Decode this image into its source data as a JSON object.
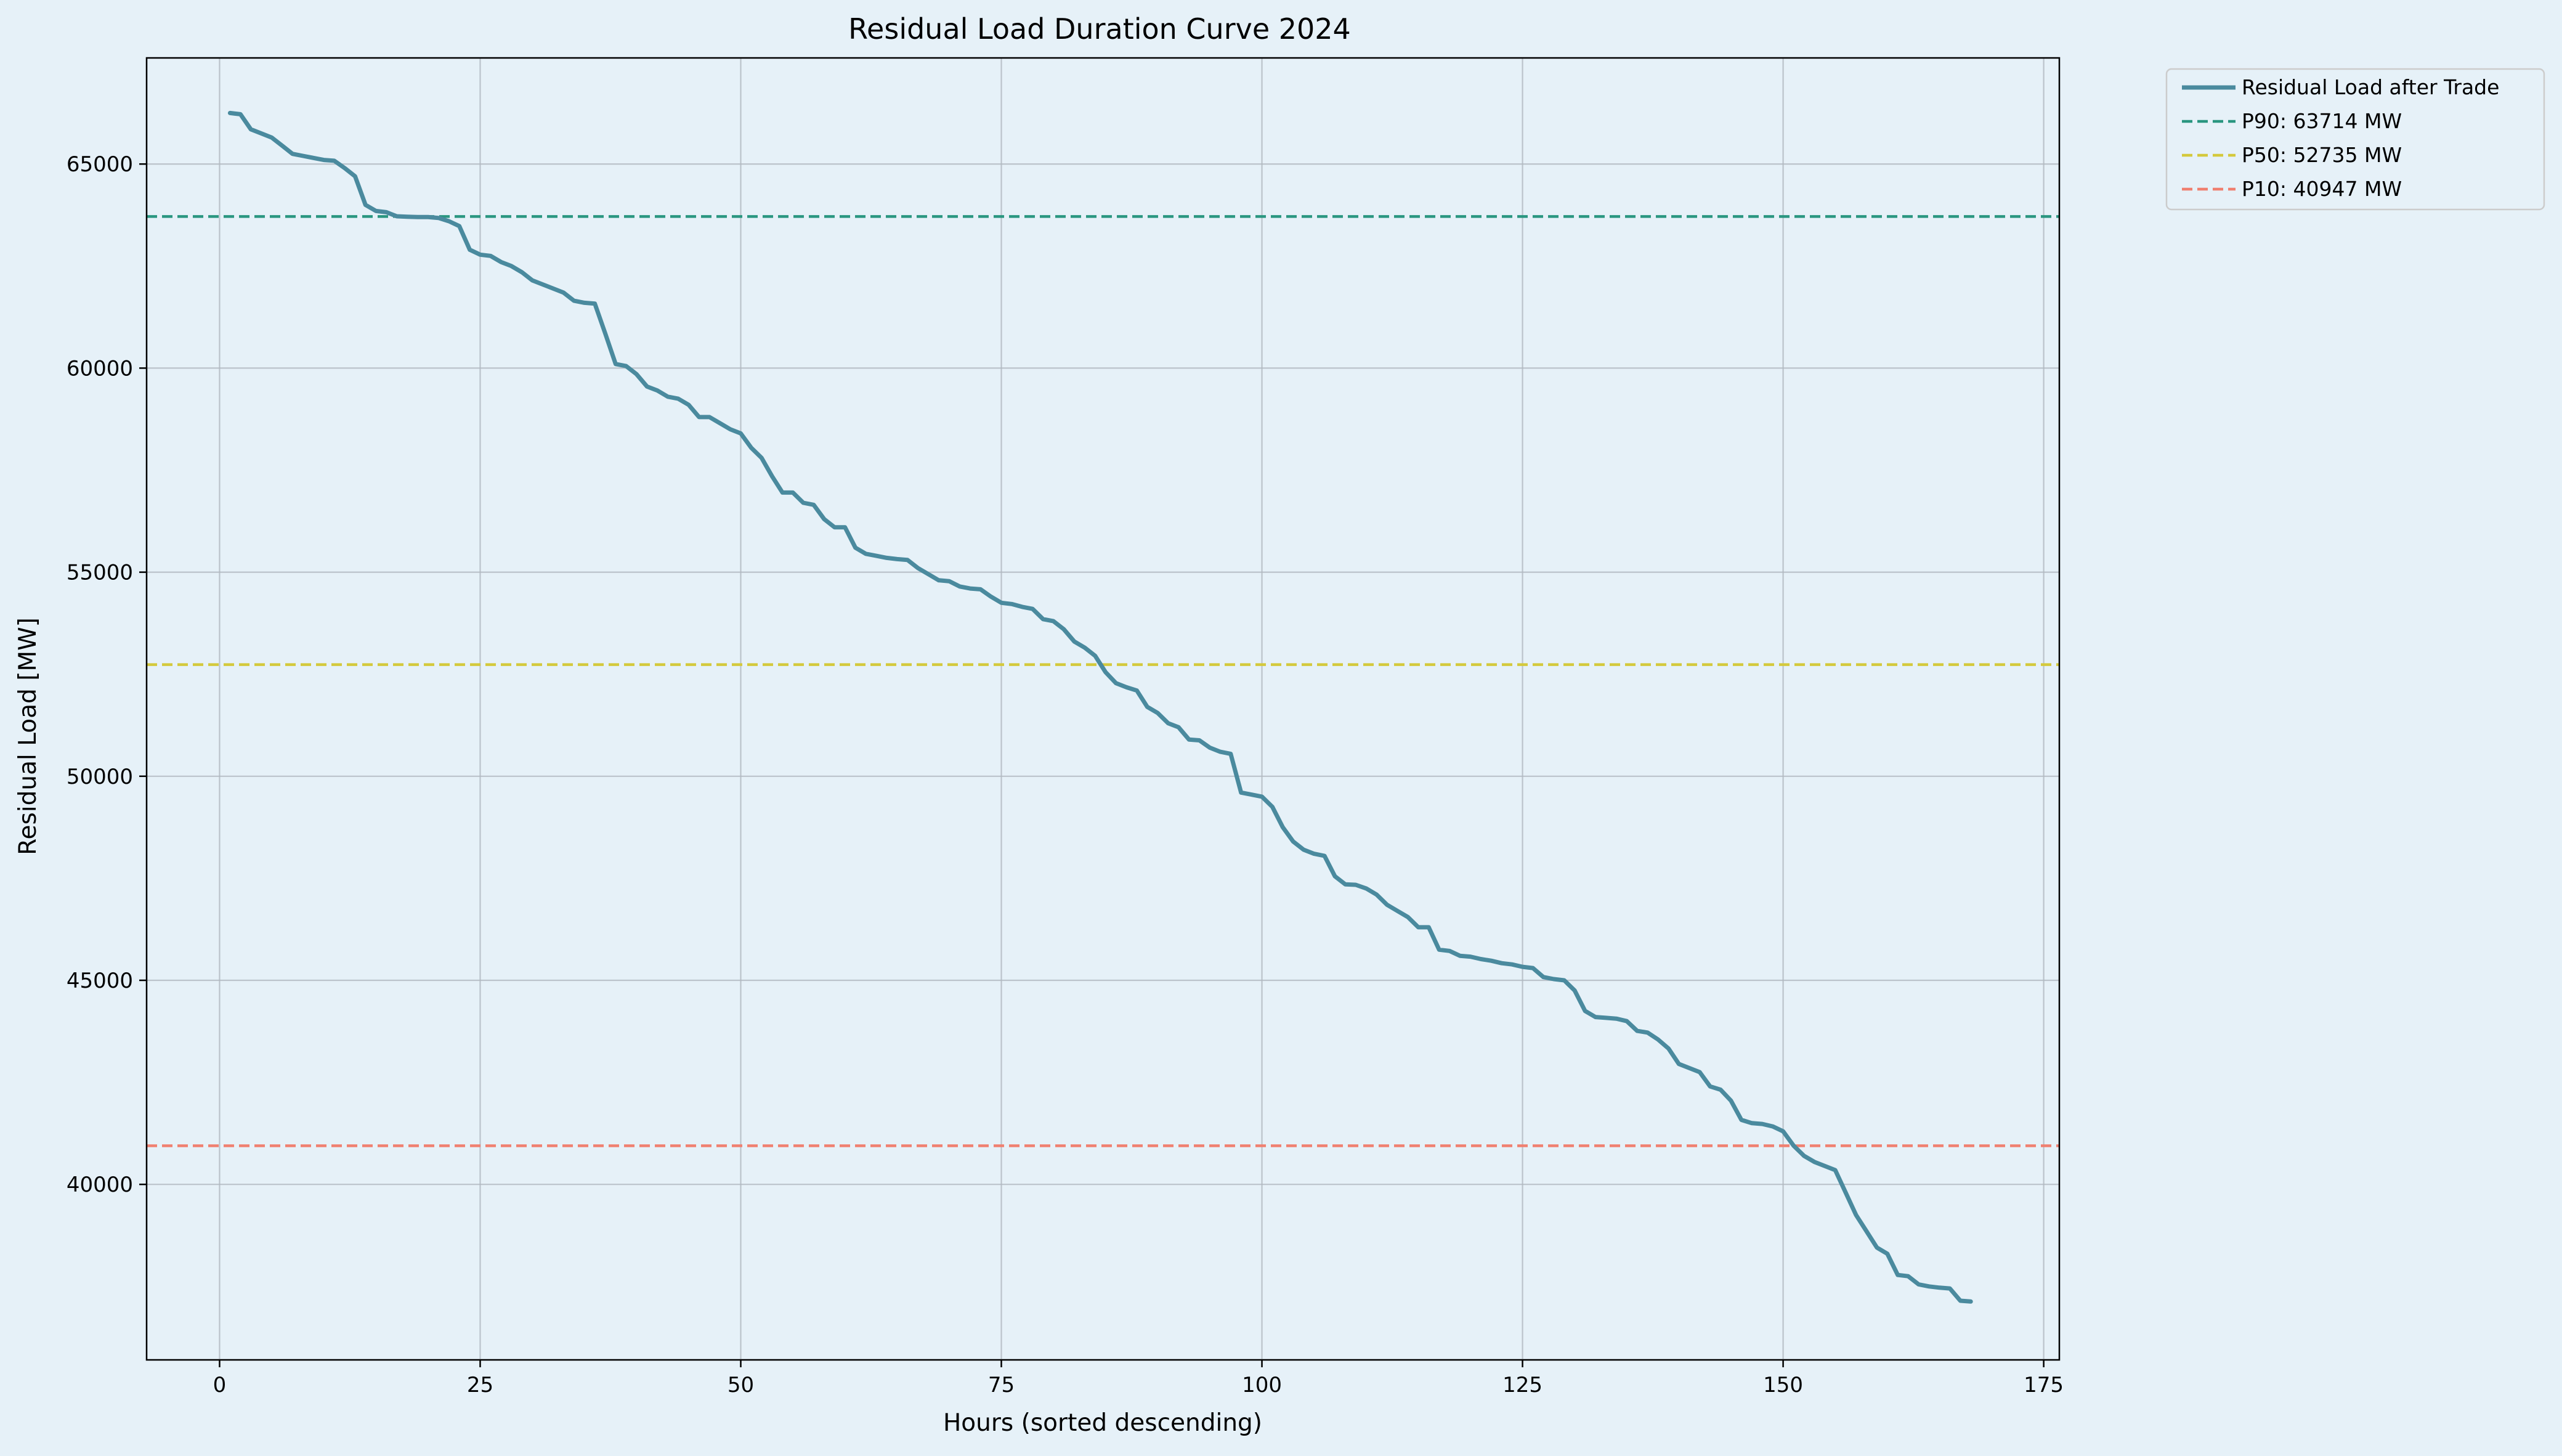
{
  "chart_data": {
    "type": "line",
    "title": "Residual Load Duration Curve 2024",
    "xlabel": "Hours (sorted descending)",
    "ylabel": "Residual Load [MW]",
    "xlim": [
      -7,
      176.5
    ],
    "ylim": [
      35700,
      67600
    ],
    "x_ticks": [
      0,
      25,
      50,
      75,
      100,
      125,
      150,
      175
    ],
    "y_ticks": [
      40000,
      45000,
      50000,
      55000,
      60000,
      65000
    ],
    "grid": true,
    "legend_position": "outside-top-right",
    "colors": {
      "series": "#4a8a9e",
      "p90": "#2a9680",
      "p50": "#d4c93c",
      "p10": "#f08070",
      "background": "#e6f1f8",
      "grid": "#b0b8bf"
    },
    "series": [
      {
        "name": "Residual Load after Trade",
        "x": [
          1,
          2,
          3,
          4,
          5,
          6,
          7,
          8,
          9,
          10,
          11,
          12,
          13,
          14,
          15,
          16,
          17,
          18,
          19,
          20,
          21,
          22,
          23,
          24,
          25,
          26,
          27,
          28,
          29,
          30,
          31,
          32,
          33,
          34,
          35,
          36,
          37,
          38,
          39,
          40,
          41,
          42,
          43,
          44,
          45,
          46,
          47,
          48,
          49,
          50,
          51,
          52,
          53,
          54,
          55,
          56,
          57,
          58,
          59,
          60,
          61,
          62,
          63,
          64,
          65,
          66,
          67,
          68,
          69,
          70,
          71,
          72,
          73,
          74,
          75,
          76,
          77,
          78,
          79,
          80,
          81,
          82,
          83,
          84,
          85,
          86,
          87,
          88,
          89,
          90,
          91,
          92,
          93,
          94,
          95,
          96,
          97,
          98,
          99,
          100,
          101,
          102,
          103,
          104,
          105,
          106,
          107,
          108,
          109,
          110,
          111,
          112,
          113,
          114,
          115,
          116,
          117,
          118,
          119,
          120,
          121,
          122,
          123,
          124,
          125,
          126,
          127,
          128,
          129,
          130,
          131,
          132,
          133,
          134,
          135,
          136,
          137,
          138,
          139,
          140,
          141,
          142,
          143,
          144,
          145,
          146,
          147,
          148,
          149,
          150,
          151,
          152,
          153,
          154,
          155,
          156,
          157,
          158,
          159,
          160,
          161,
          162,
          163,
          164,
          165,
          166,
          167,
          168
        ],
        "values": [
          66250,
          66220,
          65850,
          65750,
          65650,
          65450,
          65250,
          65200,
          65150,
          65100,
          65080,
          64900,
          64700,
          64000,
          63850,
          63820,
          63720,
          63710,
          63700,
          63700,
          63680,
          63600,
          63480,
          62900,
          62780,
          62750,
          62600,
          62500,
          62350,
          62150,
          62050,
          61950,
          61850,
          61650,
          61600,
          61580,
          60850,
          60100,
          60050,
          59850,
          59550,
          59450,
          59300,
          59250,
          59100,
          58800,
          58800,
          58650,
          58500,
          58400,
          58050,
          57800,
          57350,
          56950,
          56950,
          56700,
          56650,
          56300,
          56100,
          56100,
          55600,
          55450,
          55400,
          55350,
          55320,
          55300,
          55100,
          54950,
          54800,
          54780,
          54650,
          54600,
          54580,
          54400,
          54250,
          54220,
          54150,
          54100,
          53850,
          53800,
          53600,
          53300,
          53150,
          52950,
          52550,
          52280,
          52180,
          52100,
          51700,
          51550,
          51300,
          51200,
          50900,
          50880,
          50700,
          50600,
          50550,
          49600,
          49550,
          49500,
          49250,
          48750,
          48400,
          48200,
          48100,
          48050,
          47550,
          47350,
          47340,
          47250,
          47100,
          46850,
          46700,
          46550,
          46300,
          46300,
          45750,
          45720,
          45600,
          45580,
          45520,
          45480,
          45420,
          45390,
          45330,
          45300,
          45080,
          45030,
          45000,
          44750,
          44250,
          44100,
          44080,
          44060,
          44000,
          43760,
          43720,
          43550,
          43330,
          42950,
          42850,
          42750,
          42400,
          42320,
          42050,
          41580,
          41500,
          41480,
          41420,
          41300,
          40950,
          40700,
          40550,
          40450,
          40350,
          39800,
          39250,
          38850,
          38450,
          38300,
          37780,
          37750,
          37550,
          37500,
          37470,
          37450,
          37150,
          37130
        ]
      },
      {
        "name": "P90: 63714 MW",
        "value": 63714,
        "style": "dashed"
      },
      {
        "name": "P50: 52735 MW",
        "value": 52735,
        "style": "dashed"
      },
      {
        "name": "P10: 40947 MW",
        "value": 40947,
        "style": "dashed"
      }
    ]
  }
}
